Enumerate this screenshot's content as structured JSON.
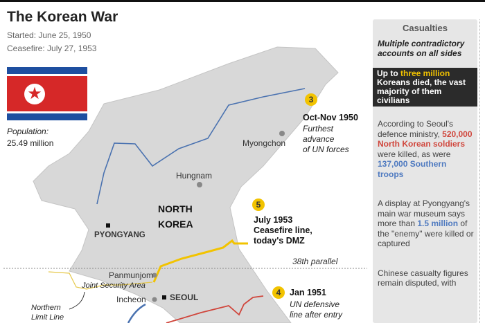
{
  "title": "The Korean War",
  "started": "Started: June 25, 1950",
  "ceasefire": "Ceasefire: July 27, 1953",
  "population_label": "Population:",
  "population_value": "25.49 million",
  "flag": "north-korea-flag",
  "map": {
    "country_line1": "NORTH",
    "country_line2": "KOREA",
    "cities": {
      "myongchon": "Myongchon",
      "hungnam": "Hungnam",
      "pyongyang": "PYONGYANG",
      "panmunjom": "Panmunjom",
      "jsa": "Joint Security Area",
      "incheon": "Incheon",
      "seoul": "SEOUL"
    },
    "parallel": "38th parallel",
    "nll_line1": "Northern",
    "nll_line2": "Limit Line",
    "events": [
      {
        "num": "3",
        "date": "Oct-Nov 1950",
        "desc1": "Furthest",
        "desc2": "advance",
        "desc3": "of UN forces"
      },
      {
        "num": "5",
        "date1": "July 1953",
        "date2": "Ceasefire line,",
        "date3": "today's DMZ"
      },
      {
        "num": "4",
        "date": "Jan 1951",
        "desc1": "UN defensive",
        "desc2": "line after entry"
      }
    ],
    "colors": {
      "un_advance": "#4a72b0",
      "dmz": "#f2c300",
      "defensive": "#d0463c"
    }
  },
  "panel": {
    "title": "Casualties",
    "subtitle": "Multiple contradictory accounts on all sides",
    "highlight_pre": "Up to ",
    "highlight_em": "three million",
    "highlight_post": " Koreans died, the vast majority of them civilians",
    "p1_pre": "According to Seoul's defence ministry, ",
    "p1_red": "520,000 North Korean soldiers",
    "p1_mid": " were killed, as were ",
    "p1_blue": "137,000 Southern troops",
    "p2_pre": "A display at Pyongyang's main war museum says more than ",
    "p2_blue": "1.5 million",
    "p2_post": " of the \"enemy\" were killed or captured",
    "p3": "Chinese casualty figures remain disputed, with"
  }
}
